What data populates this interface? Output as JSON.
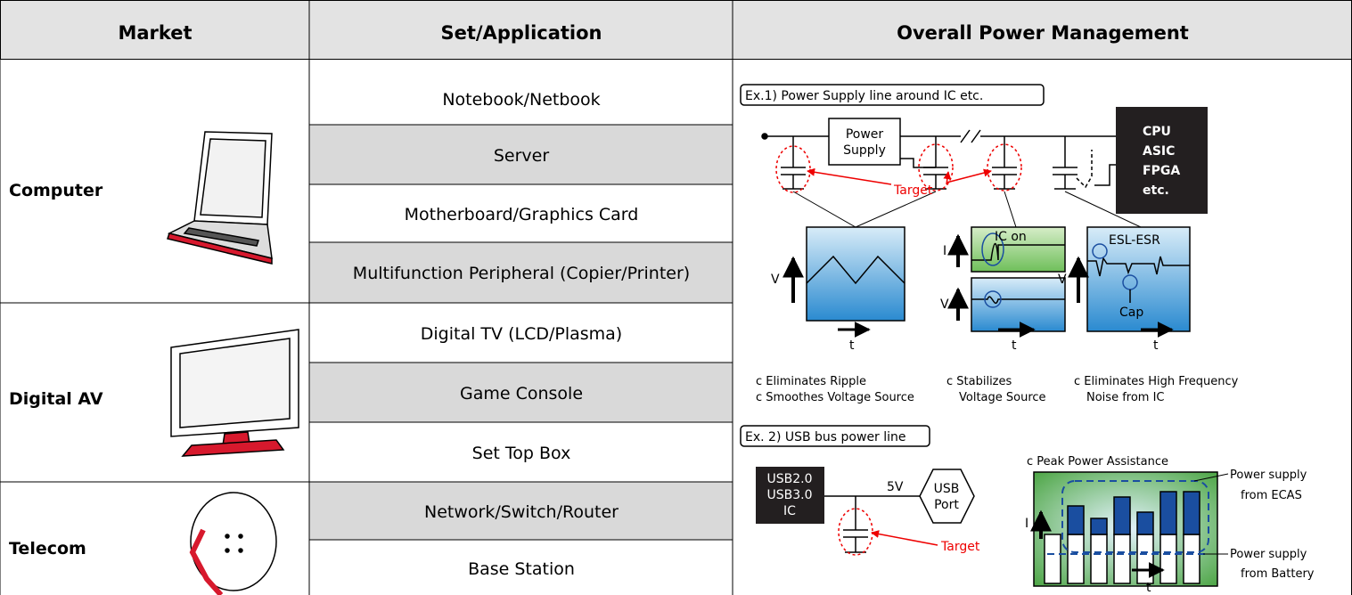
{
  "table": {
    "headers": [
      "Market",
      "Set/Application",
      "Overall Power Management"
    ],
    "markets": [
      {
        "name": "Computer",
        "applications": [
          "Notebook/Netbook",
          "Server",
          "Motherboard/Graphics Card",
          "Multifunction Peripheral (Copier/Printer)"
        ]
      },
      {
        "name": "Digital AV",
        "applications": [
          "Digital TV (LCD/Plasma)",
          "Game Console",
          "Set Top Box"
        ]
      },
      {
        "name": "Telecom",
        "applications": [
          "Network/Switch/Router",
          "Base Station"
        ]
      }
    ]
  },
  "diagram": {
    "example1": {
      "title": "Ex.1) Power Supply line around IC etc.",
      "power_supply": [
        "Power",
        "Supply"
      ],
      "ic": [
        "CPU",
        "ASIC",
        "FPGA",
        "etc."
      ],
      "target": "Target",
      "graphs": [
        {
          "y_label": "V",
          "x_label": "t",
          "caption": [
            "c Eliminates Ripple",
            "c Smoothes Voltage Source"
          ]
        },
        {
          "upper_y_label": "I",
          "lower_y_label": "V",
          "note": "IC on",
          "x_label": "t",
          "caption": [
            "c Stabilizes",
            "Voltage Source"
          ]
        },
        {
          "y_label": "V",
          "x_label": "t",
          "notes": [
            "ESL-ESR",
            "Cap"
          ],
          "caption": [
            "c Eliminates High Frequency",
            "Noise from IC"
          ]
        }
      ]
    },
    "example2": {
      "title": "Ex. 2) USB bus power line",
      "ic": [
        "USB2.0",
        "USB3.0",
        "IC"
      ],
      "voltage": "5V",
      "port": [
        "USB",
        "Port"
      ],
      "target": "Target",
      "caption": "c Peak Power Assistance",
      "y_label": "I",
      "x_label": "t",
      "legend": [
        [
          "Power supply",
          "from ECAS"
        ],
        [
          "Power supply",
          "from Battery"
        ]
      ]
    }
  }
}
